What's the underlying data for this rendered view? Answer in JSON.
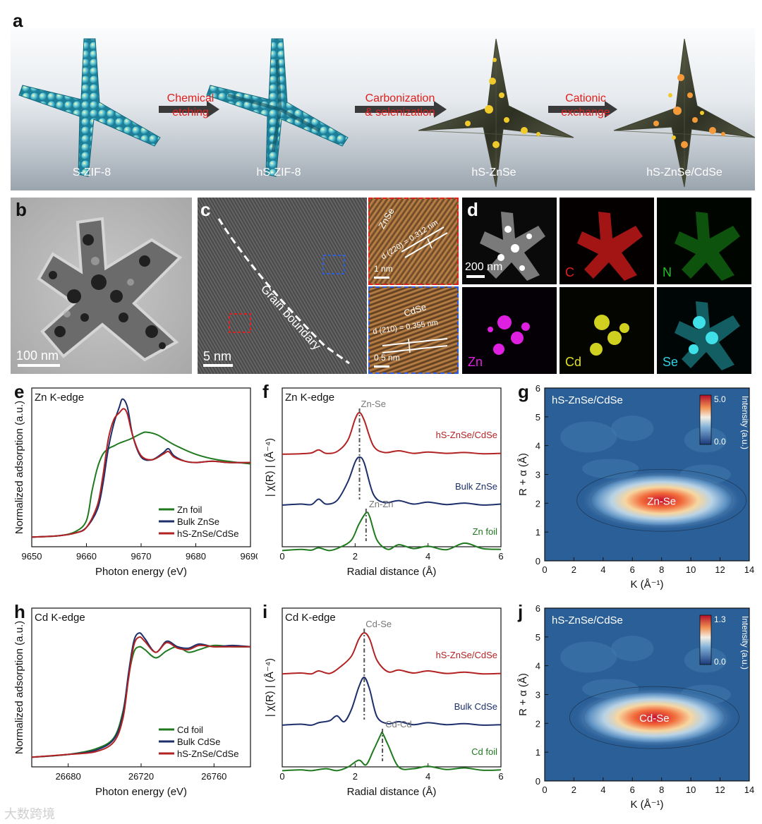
{
  "figure": {
    "panel_labels": [
      "a",
      "b",
      "c",
      "d",
      "e",
      "f",
      "g",
      "h",
      "i",
      "j"
    ],
    "a": {
      "stages": [
        "S-ZIF-8",
        "hS-ZIF-8",
        "hS-ZnSe",
        "hS-ZnSe/CdSe"
      ],
      "arrows": [
        {
          "line1": "Chemical",
          "line2": "etching"
        },
        {
          "line1": "Carbonization",
          "line2": "& selenization"
        },
        {
          "line1": "Cationic",
          "line2": "exchange"
        }
      ]
    },
    "b": {
      "scale": "100 nm"
    },
    "c": {
      "scale": "5 nm",
      "annotation": "Grain boundary",
      "inset_top": {
        "phase": "ZnSe",
        "spacing": "d (220) = 0.312 nm",
        "scale": "1 nm"
      },
      "inset_bottom": {
        "phase": "CdSe",
        "spacing": "d (210) = 0.355 nm",
        "scale": "0.5 nm"
      }
    },
    "d": {
      "scale": "200 nm",
      "elements": [
        "C",
        "N",
        "Zn",
        "Cd",
        "Se"
      ]
    },
    "watermark": "大数跨境"
  },
  "chart_data": [
    {
      "id": "e",
      "type": "line",
      "title": "Zn K-edge",
      "xlabel": "Photon energy (eV)",
      "ylabel": "Normalized adsorption (a.u.)",
      "xlim": [
        9650,
        9690
      ],
      "xticks": [
        9650,
        9660,
        9670,
        9680,
        9690
      ],
      "series": [
        {
          "name": "Zn foil",
          "color": "#1f7a1f",
          "x": [
            9650,
            9655,
            9658,
            9660,
            9661,
            9662,
            9663,
            9664,
            9665,
            9666,
            9668,
            9670,
            9671,
            9673,
            9676,
            9680,
            9684,
            9690
          ],
          "y": [
            0.02,
            0.03,
            0.06,
            0.14,
            0.35,
            0.52,
            0.62,
            0.66,
            0.68,
            0.7,
            0.73,
            0.77,
            0.78,
            0.76,
            0.69,
            0.62,
            0.58,
            0.55
          ]
        },
        {
          "name": "Bulk ZnSe",
          "color": "#1c2f6b",
          "x": [
            9650,
            9655,
            9658,
            9660,
            9662,
            9663,
            9664,
            9665,
            9666,
            9666.6,
            9667.5,
            9668.5,
            9670,
            9672,
            9674,
            9675,
            9676,
            9678,
            9680,
            9683,
            9686,
            9690
          ],
          "y": [
            0.02,
            0.03,
            0.05,
            0.09,
            0.22,
            0.4,
            0.66,
            0.84,
            0.96,
            1.02,
            0.96,
            0.75,
            0.6,
            0.58,
            0.63,
            0.66,
            0.61,
            0.57,
            0.56,
            0.57,
            0.56,
            0.56
          ]
        },
        {
          "name": "hS-ZnSe/CdSe",
          "color": "#b22222",
          "x": [
            9650,
            9655,
            9658,
            9660,
            9662,
            9663,
            9664,
            9665,
            9666,
            9666.8,
            9667.5,
            9668.5,
            9670,
            9672,
            9674,
            9675,
            9676,
            9678,
            9680,
            9683,
            9686,
            9690
          ],
          "y": [
            0.02,
            0.03,
            0.05,
            0.09,
            0.25,
            0.46,
            0.73,
            0.87,
            0.92,
            0.95,
            0.91,
            0.75,
            0.61,
            0.58,
            0.62,
            0.64,
            0.6,
            0.57,
            0.56,
            0.57,
            0.56,
            0.56
          ]
        }
      ],
      "legend": "bottom-right"
    },
    {
      "id": "f",
      "type": "line",
      "title": "Zn K-edge",
      "xlabel": "Radial distance (Å)",
      "ylabel": "| χ(R) | (Å⁻⁴)",
      "xlim": [
        0,
        6
      ],
      "xticks": [
        0,
        2,
        4,
        6
      ],
      "annotations": [
        "Zn-Se",
        "Zn-Zn"
      ],
      "series": [
        {
          "name": "hS-ZnSe/CdSe",
          "color": "#b22222",
          "x": [
            0,
            0.5,
            0.8,
            1.0,
            1.2,
            1.5,
            1.8,
            2.0,
            2.12,
            2.25,
            2.5,
            2.8,
            3.2,
            3.6,
            4.0,
            4.5,
            5.0,
            5.5,
            6.0
          ],
          "y": [
            0.02,
            0.03,
            0.05,
            0.12,
            0.04,
            0.08,
            0.35,
            0.85,
            1.0,
            0.82,
            0.22,
            0.06,
            0.1,
            0.04,
            0.07,
            0.04,
            0.06,
            0.03,
            0.04
          ]
        },
        {
          "name": "Bulk ZnSe",
          "color": "#1c2f6b",
          "x": [
            0,
            0.5,
            0.8,
            1.0,
            1.2,
            1.5,
            1.8,
            2.0,
            2.12,
            2.25,
            2.5,
            2.8,
            3.2,
            3.6,
            4.0,
            4.5,
            5.0,
            5.5,
            6.0
          ],
          "y": [
            0.03,
            0.05,
            0.04,
            0.15,
            0.05,
            0.12,
            0.5,
            0.9,
            1.0,
            0.88,
            0.25,
            0.08,
            0.12,
            0.05,
            0.09,
            0.04,
            0.07,
            0.03,
            0.05
          ]
        },
        {
          "name": "Zn foil",
          "color": "#1f7a1f",
          "x": [
            0,
            0.5,
            0.8,
            1.0,
            1.3,
            1.6,
            1.9,
            2.1,
            2.3,
            2.4,
            2.6,
            2.9,
            3.2,
            3.6,
            4.0,
            4.5,
            5.0,
            5.5,
            6.0
          ],
          "y": [
            0.03,
            0.06,
            0.04,
            0.1,
            0.03,
            0.12,
            0.3,
            0.7,
            1.0,
            0.9,
            0.3,
            0.06,
            0.18,
            0.08,
            0.14,
            0.05,
            0.22,
            0.08,
            0.06
          ]
        }
      ],
      "peak_lines": [
        2.12,
        2.3
      ]
    },
    {
      "id": "g",
      "type": "heatmap",
      "title": "hS-ZnSe/CdSe",
      "xlabel": "K (Å⁻¹)",
      "ylabel": "R + α (Å)",
      "xlim": [
        0,
        14
      ],
      "ylim": [
        0,
        6
      ],
      "xticks": [
        0,
        2,
        4,
        6,
        8,
        10,
        12,
        14
      ],
      "yticks": [
        0,
        1,
        2,
        3,
        4,
        5,
        6
      ],
      "colorbar": {
        "label": "Intensity (a.u.)",
        "min": "0.0",
        "max": "5.0"
      },
      "peak": {
        "label": "Zn-Se",
        "k": 8,
        "r": 2.1
      }
    },
    {
      "id": "h",
      "type": "line",
      "title": "Cd K-edge",
      "xlabel": "Photon energy (eV)",
      "ylabel": "Normalized adsorption (a.u.)",
      "xlim": [
        26660,
        26780
      ],
      "xticks": [
        26680,
        26720,
        26760
      ],
      "series": [
        {
          "name": "Cd foil",
          "color": "#1f7a1f",
          "x": [
            26660,
            26680,
            26695,
            26705,
            26710,
            26713,
            26716,
            26719,
            26722,
            26728,
            26734,
            26740,
            26746,
            26752,
            26760,
            26770,
            26780
          ],
          "y": [
            0.02,
            0.04,
            0.08,
            0.16,
            0.35,
            0.6,
            0.78,
            0.82,
            0.8,
            0.74,
            0.79,
            0.82,
            0.78,
            0.8,
            0.83,
            0.82,
            0.82
          ]
        },
        {
          "name": "Bulk CdSe",
          "color": "#1c2f6b",
          "x": [
            26660,
            26680,
            26695,
            26705,
            26710,
            26713,
            26716,
            26719,
            26722,
            26728,
            26734,
            26740,
            26746,
            26752,
            26760,
            26770,
            26780
          ],
          "y": [
            0.02,
            0.04,
            0.07,
            0.15,
            0.33,
            0.62,
            0.86,
            0.92,
            0.88,
            0.78,
            0.86,
            0.82,
            0.81,
            0.84,
            0.82,
            0.83,
            0.82
          ]
        },
        {
          "name": "hS-ZnSe/CdSe",
          "color": "#b22222",
          "x": [
            26660,
            26680,
            26695,
            26705,
            26710,
            26713,
            26716,
            26719,
            26722,
            26728,
            26734,
            26740,
            26746,
            26752,
            26760,
            26770,
            26780
          ],
          "y": [
            0.02,
            0.04,
            0.06,
            0.13,
            0.3,
            0.58,
            0.83,
            0.89,
            0.86,
            0.78,
            0.85,
            0.81,
            0.8,
            0.83,
            0.82,
            0.82,
            0.82
          ]
        }
      ],
      "legend": "bottom-right"
    },
    {
      "id": "i",
      "type": "line",
      "title": "Cd K-edge",
      "xlabel": "Radial distance (Å)",
      "ylabel": "| χ(R) | (Å⁻⁴)",
      "xlim": [
        0,
        6
      ],
      "xticks": [
        0,
        2,
        4,
        6
      ],
      "annotations": [
        "Cd-Se",
        "Cd-Cd"
      ],
      "series": [
        {
          "name": "hS-ZnSe/CdSe",
          "color": "#b22222",
          "x": [
            0,
            0.5,
            0.8,
            1.0,
            1.3,
            1.6,
            1.9,
            2.1,
            2.25,
            2.4,
            2.6,
            2.9,
            3.2,
            3.6,
            4.0,
            4.5,
            5.0,
            5.5,
            6.0
          ],
          "y": [
            0.03,
            0.05,
            0.03,
            0.1,
            0.04,
            0.2,
            0.45,
            0.85,
            1.0,
            0.85,
            0.35,
            0.08,
            0.12,
            0.05,
            0.1,
            0.04,
            0.07,
            0.03,
            0.04
          ]
        },
        {
          "name": "Bulk CdSe",
          "color": "#1c2f6b",
          "x": [
            0,
            0.5,
            0.8,
            1.0,
            1.3,
            1.5,
            1.7,
            1.9,
            2.1,
            2.25,
            2.4,
            2.6,
            2.9,
            3.2,
            3.6,
            4.0,
            4.5,
            5.0,
            5.5,
            6.0
          ],
          "y": [
            0.03,
            0.05,
            0.03,
            0.08,
            0.12,
            0.22,
            0.1,
            0.35,
            0.8,
            1.0,
            0.75,
            0.2,
            0.06,
            0.1,
            0.04,
            0.08,
            0.04,
            0.06,
            0.03,
            0.04
          ]
        },
        {
          "name": "Cd foil",
          "color": "#1f7a1f",
          "x": [
            0,
            0.5,
            0.8,
            1.2,
            1.5,
            1.8,
            2.1,
            2.3,
            2.5,
            2.7,
            2.75,
            2.9,
            3.2,
            3.6,
            4.0,
            4.5,
            5.0,
            5.5,
            6.0
          ],
          "y": [
            0.03,
            0.05,
            0.03,
            0.08,
            0.03,
            0.12,
            0.3,
            0.18,
            0.55,
            0.95,
            1.0,
            0.7,
            0.12,
            0.08,
            0.14,
            0.06,
            0.1,
            0.04,
            0.05
          ]
        }
      ],
      "peak_lines": [
        2.25,
        2.75
      ]
    },
    {
      "id": "j",
      "type": "heatmap",
      "title": "hS-ZnSe/CdSe",
      "xlabel": "K (Å⁻¹)",
      "ylabel": "R + α (Å)",
      "xlim": [
        0,
        14
      ],
      "ylim": [
        0,
        6
      ],
      "xticks": [
        0,
        2,
        4,
        6,
        8,
        10,
        12,
        14
      ],
      "yticks": [
        0,
        1,
        2,
        3,
        4,
        5,
        6
      ],
      "colorbar": {
        "label": "Intensity (a.u.)",
        "min": "0.0",
        "max": "1.3"
      },
      "peak": {
        "label": "Cd-Se",
        "k": 7.5,
        "r": 2.2
      }
    }
  ]
}
